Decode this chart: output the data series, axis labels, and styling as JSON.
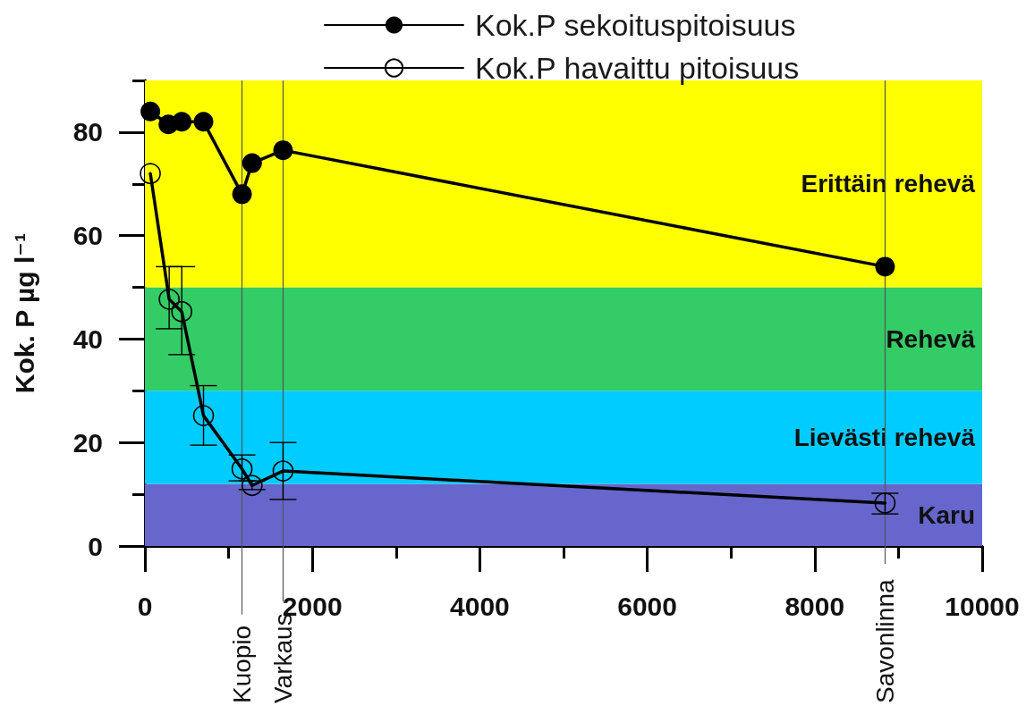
{
  "chart_data": {
    "type": "line",
    "ylabel": "Kok. P µg l⁻¹",
    "xlim": [
      0,
      10000
    ],
    "xticks": [
      0,
      {
        "value": 1000,
        "label": null
      },
      2000,
      {
        "value": 3000,
        "label": null
      },
      4000,
      {
        "value": 5000,
        "label": null
      },
      6000,
      {
        "value": 7000,
        "label": null
      },
      8000,
      {
        "value": 9000,
        "label": null
      },
      10000
    ],
    "ylim": [
      0,
      90
    ],
    "yticks": [
      0,
      {
        "value": 10,
        "label": null
      },
      20,
      {
        "value": 30,
        "label": null
      },
      40,
      {
        "value": 50,
        "label": null
      },
      60,
      {
        "value": 70,
        "label": null
      },
      80,
      {
        "value": 90,
        "label": null
      }
    ],
    "series": [
      {
        "name": "Kok.P sekoituspitoisuus",
        "color": "#000000",
        "x": [
          65,
          280,
          440,
          700,
          1160,
          1280,
          1650,
          8840
        ],
        "values": [
          84,
          81.5,
          82,
          82,
          68,
          74,
          76.5,
          54
        ]
      },
      {
        "name": "Kok.P havaittu pitoisuus",
        "color": "#000000",
        "x": [
          65,
          290,
          440,
          700,
          1160,
          1280,
          1650,
          8840
        ],
        "values": [
          72,
          47.7,
          45.3,
          25.2,
          14.9,
          11.7,
          14.5,
          8.3
        ],
        "errors": [
          null,
          [
            42,
            54
          ],
          [
            37,
            54
          ],
          [
            19.5,
            31
          ],
          [
            12.6,
            17.6
          ],
          [
            10.9,
            12.6
          ],
          [
            9,
            20
          ],
          [
            6.2,
            10.2
          ]
        ]
      }
    ],
    "bands": [
      {
        "axis": "y",
        "from": 0,
        "to": 12,
        "label": "Karu",
        "color": "#6666cc"
      },
      {
        "axis": "y",
        "from": 12,
        "to": 30,
        "label": "Lievästi rehevä",
        "color": "#00ccff"
      },
      {
        "axis": "y",
        "from": 30,
        "to": 50,
        "label": "Rehevä",
        "color": "#33cc66"
      },
      {
        "axis": "y",
        "from": 50,
        "to": 90,
        "label": "Erittäin rehevä",
        "color": "#ffff00"
      }
    ],
    "ref_lines": [
      {
        "axis": "x",
        "value": 1160,
        "label": "Kuopio",
        "color": "#555555"
      },
      {
        "axis": "x",
        "value": 1650,
        "label": "Varkaus",
        "color": "#555555"
      },
      {
        "axis": "x",
        "value": 8840,
        "label": "Savonlinna",
        "color": "#555555"
      }
    ],
    "legend": "top",
    "marker": "circle",
    "line_style": "solid"
  }
}
